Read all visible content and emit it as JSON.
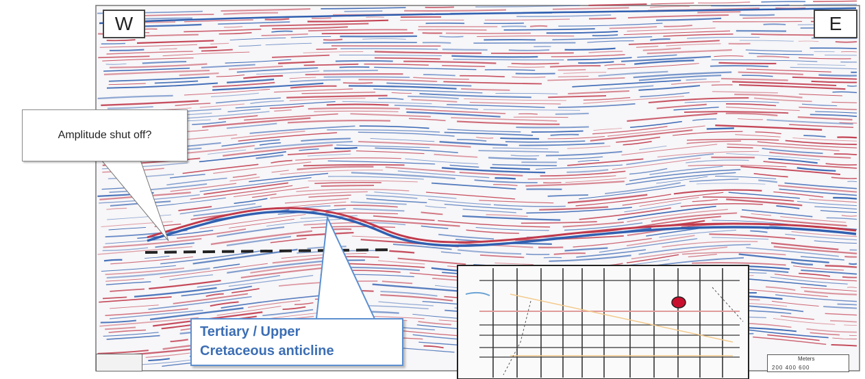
{
  "section": {
    "west_label": "W",
    "east_label": "E"
  },
  "annotations": {
    "amplitude_callout": "Amplitude shut off?",
    "anticline_line1": "Tertiary / Upper",
    "anticline_line2": "Cretaceous anticline"
  },
  "scale_bar": {
    "title": "Meters",
    "ticks": "200 400 600"
  },
  "colors": {
    "peak": "#c0394b",
    "trough": "#2f5fb0",
    "callout_text": "#3c6eb4",
    "callout_border": "#5b8fd0",
    "well_marker": "#c8102e"
  },
  "icons": [
    "well-location-marker"
  ]
}
